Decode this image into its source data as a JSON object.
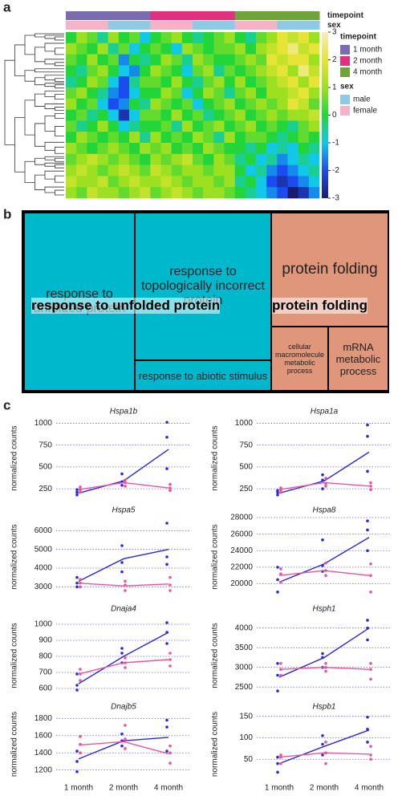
{
  "panels": [
    "a",
    "b",
    "c"
  ],
  "chart_data": [
    {
      "type": "heatmap",
      "annotations": [
        {
          "name": "timepoint",
          "levels": [
            {
              "label": "1 month",
              "color": "#7b6bb0"
            },
            {
              "label": "2 month",
              "color": "#e0307e"
            },
            {
              "label": "4 month",
              "color": "#6ea43a"
            }
          ]
        },
        {
          "name": "sex",
          "levels": [
            {
              "label": "male",
              "color": "#8ecae6"
            },
            {
              "label": "female",
              "color": "#f4b3c6"
            }
          ]
        }
      ],
      "columns": [
        [
          0,
          1
        ],
        [
          0,
          1
        ],
        [
          0,
          1
        ],
        [
          0,
          1
        ],
        [
          0,
          0
        ],
        [
          0,
          0
        ],
        [
          0,
          0
        ],
        [
          0,
          0
        ],
        [
          1,
          1
        ],
        [
          1,
          1
        ],
        [
          1,
          1
        ],
        [
          1,
          1
        ],
        [
          1,
          0
        ],
        [
          1,
          0
        ],
        [
          1,
          0
        ],
        [
          1,
          0
        ],
        [
          2,
          1
        ],
        [
          2,
          1
        ],
        [
          2,
          1
        ],
        [
          2,
          1
        ],
        [
          2,
          0
        ],
        [
          2,
          0
        ],
        [
          2,
          0
        ],
        [
          2,
          0
        ]
      ],
      "colorscale": [
        "#1c1c6e",
        "#1a4cf0",
        "#12c8e8",
        "#22d63a",
        "#9de022",
        "#e6e436",
        "#f7eec0"
      ],
      "clim": [
        -3,
        3
      ],
      "cticks": [
        -3,
        -2,
        -1,
        0,
        1,
        2,
        3
      ],
      "values": [
        [
          0,
          1,
          0.5,
          -0.5,
          1,
          0,
          0.5,
          -1,
          0,
          0.5,
          1,
          0,
          -0.5,
          0,
          0.5,
          1,
          0,
          -0.5,
          0.5,
          1,
          2,
          1.5,
          2,
          1
        ],
        [
          1,
          0.5,
          0,
          1,
          -0.5,
          0.5,
          -1,
          0,
          0.5,
          0,
          -1,
          1,
          0.5,
          0,
          0.5,
          0.5,
          1,
          0,
          1,
          1.5,
          2,
          2.5,
          1.5,
          2
        ],
        [
          0.5,
          0,
          1,
          0,
          0.5,
          -1.5,
          0,
          -0.5,
          0,
          1,
          0.5,
          -0.5,
          1,
          0.5,
          0,
          0,
          0.5,
          1,
          0.5,
          2,
          1.5,
          2,
          2,
          1
        ],
        [
          0,
          -0.5,
          0.5,
          1,
          0,
          -1,
          -1.5,
          0,
          1,
          0.5,
          0,
          -1,
          0.5,
          1,
          -0.5,
          0.5,
          0,
          0.5,
          1,
          1.5,
          2,
          1,
          2.5,
          1.5
        ],
        [
          -0.5,
          0,
          1,
          0.5,
          -1,
          -2,
          -0.5,
          0.5,
          0.5,
          0,
          1,
          0,
          -0.5,
          0.5,
          1,
          0,
          1,
          0,
          0.5,
          1,
          1.5,
          2,
          1,
          2
        ],
        [
          0.5,
          1,
          0,
          -0.5,
          -1.5,
          -2,
          -1,
          0,
          0,
          1,
          0.5,
          -1,
          0,
          1,
          0.5,
          -0.5,
          0.5,
          1,
          0,
          1,
          1,
          1.5,
          2,
          1
        ],
        [
          1,
          0,
          0.5,
          -1,
          -2,
          -1.5,
          0,
          -0.5,
          1,
          0.5,
          0,
          0.5,
          -1,
          0,
          0.5,
          1,
          0,
          0.5,
          1,
          0.5,
          1,
          2,
          1.5,
          0.5
        ],
        [
          0,
          0.5,
          -0.5,
          0,
          -1,
          -2.5,
          -1,
          0.5,
          0.5,
          0,
          1,
          0,
          0.5,
          -0.5,
          0,
          0.5,
          1,
          0,
          0.5,
          1,
          0.5,
          1,
          1,
          1.5
        ],
        [
          0.5,
          -0.5,
          0,
          1,
          0,
          -1,
          -0.5,
          0,
          0,
          0.5,
          -0.5,
          1,
          0,
          0.5,
          1,
          0,
          0.5,
          1,
          0,
          0.5,
          0,
          -0.5,
          0.5,
          1
        ],
        [
          0,
          1,
          0.5,
          0,
          0.5,
          0,
          1,
          -0.5,
          1,
          0,
          0.5,
          0,
          1,
          0.5,
          -0.5,
          1,
          0,
          0.5,
          0.5,
          0,
          -0.5,
          0,
          0.5,
          0
        ],
        [
          1,
          0.5,
          0,
          0.5,
          1,
          0.5,
          0,
          1,
          0.5,
          1,
          0,
          0.5,
          0,
          1,
          0.5,
          0,
          0,
          -0.5,
          0,
          -1,
          -0.5,
          -1,
          0,
          -0.5
        ],
        [
          0.5,
          1,
          1.5,
          1,
          0.5,
          1,
          0.5,
          0,
          1,
          0.5,
          1,
          1.5,
          0.5,
          0,
          1,
          0.5,
          -0.5,
          0,
          -1,
          -0.5,
          -1.5,
          -1,
          -0.5,
          -1
        ],
        [
          1,
          1.5,
          1,
          0.5,
          1,
          1.5,
          1,
          0.5,
          1.5,
          1,
          0.5,
          1,
          1,
          0.5,
          1,
          1,
          0,
          -1,
          -0.5,
          -1.5,
          -2,
          -1.5,
          -1,
          -0.5
        ],
        [
          1.5,
          1,
          1,
          1.5,
          0.5,
          1,
          1.5,
          1,
          1,
          1.5,
          1,
          0.5,
          1,
          1,
          0.5,
          1,
          -0.5,
          0,
          -1,
          -2,
          -2.5,
          -2,
          -1.5,
          -1
        ],
        [
          1,
          0.5,
          1.5,
          1,
          1,
          0.5,
          1,
          1.5,
          0.5,
          1,
          1.5,
          1,
          0.5,
          1,
          1,
          0.5,
          0,
          -0.5,
          -1,
          -1.5,
          -2,
          -3,
          -2.5,
          -1.5
        ]
      ]
    },
    {
      "type": "treemap",
      "groups": [
        {
          "label": "response to unfolded protein",
          "color": "#00b8cc",
          "children": [
            "response to unfolded protein",
            "response to topologically incorrect protein",
            "response to abiotic stimulus"
          ]
        },
        {
          "label": "protein folding",
          "color": "#e0967a",
          "children": [
            "protein folding",
            "cellular macromolecule metabolic process",
            "mRNA metabolic process"
          ]
        }
      ]
    },
    {
      "type": "line",
      "title": "Hspa1b",
      "ylabel": "normalized counts",
      "ylim": [
        150,
        1050
      ],
      "yticks": [
        250,
        500,
        750,
        1000
      ],
      "grid": true,
      "series": [
        {
          "color": "#2b2bd1",
          "values": [
            200,
            340,
            700
          ],
          "points": [
            [
              180,
              210,
              240
            ],
            [
              290,
              330,
              420
            ],
            [
              480,
              840,
              1010
            ]
          ]
        },
        {
          "color": "#e8559b",
          "values": [
            240,
            320,
            260
          ],
          "points": [
            [
              210,
              240,
              270
            ],
            [
              280,
              320,
              350
            ],
            [
              230,
              260,
              300
            ]
          ]
        }
      ]
    },
    {
      "type": "line",
      "title": "Hspa1a",
      "ylabel": "normalized counts",
      "ylim": [
        150,
        1050
      ],
      "yticks": [
        250,
        500,
        750,
        1000
      ],
      "grid": true,
      "series": [
        {
          "color": "#2b2bd1",
          "values": [
            200,
            340,
            670
          ],
          "points": [
            [
              180,
              210,
              230
            ],
            [
              250,
              350,
              410
            ],
            [
              450,
              850,
              980
            ]
          ]
        },
        {
          "color": "#e8559b",
          "values": [
            240,
            320,
            280
          ],
          "points": [
            [
              210,
              240,
              260
            ],
            [
              280,
              310,
              370
            ],
            [
              240,
              280,
              320
            ]
          ]
        }
      ]
    },
    {
      "type": "line",
      "title": "Hspa5",
      "ylabel": "normalized counts",
      "ylim": [
        2500,
        6700
      ],
      "yticks": [
        3000,
        4000,
        5000,
        6000
      ],
      "grid": true,
      "series": [
        {
          "color": "#2b2bd1",
          "values": [
            3300,
            4500,
            5000
          ],
          "points": [
            [
              3000,
              3200,
              3500
            ],
            [
              3800,
              4300,
              5200
            ],
            [
              4200,
              4600,
              6400
            ]
          ]
        },
        {
          "color": "#e8559b",
          "values": [
            3200,
            3050,
            3150
          ],
          "points": [
            [
              3000,
              3200,
              3400
            ],
            [
              2800,
              3100,
              3300
            ],
            [
              2800,
              3100,
              3500
            ]
          ]
        }
      ]
    },
    {
      "type": "line",
      "title": "Hspa8",
      "ylabel": "normalized counts",
      "ylim": [
        18500,
        28000
      ],
      "yticks": [
        20000,
        22000,
        24000,
        26000,
        28000
      ],
      "grid": true,
      "series": [
        {
          "color": "#2b2bd1",
          "values": [
            20200,
            22400,
            25600
          ],
          "points": [
            [
              19000,
              20500,
              22000
            ],
            [
              21500,
              22200,
              25300
            ],
            [
              24000,
              26500,
              27600
            ]
          ]
        },
        {
          "color": "#e8559b",
          "values": [
            21000,
            21600,
            21000
          ],
          "points": [
            [
              20200,
              21200,
              21800
            ],
            [
              21000,
              21600,
              22500
            ],
            [
              19000,
              21000,
              22400
            ]
          ]
        }
      ]
    },
    {
      "type": "line",
      "title": "Dnaja4",
      "ylabel": "normalized counts",
      "ylim": [
        560,
        1050
      ],
      "yticks": [
        600,
        700,
        800,
        900,
        1000
      ],
      "grid": true,
      "series": [
        {
          "color": "#2b2bd1",
          "values": [
            630,
            800,
            950
          ],
          "points": [
            [
              590,
              620,
              690
            ],
            [
              760,
              820,
              850
            ],
            [
              880,
              950,
              1010
            ]
          ]
        },
        {
          "color": "#e8559b",
          "values": [
            690,
            760,
            780
          ],
          "points": [
            [
              650,
              690,
              720
            ],
            [
              730,
              760,
              790
            ],
            [
              740,
              780,
              820
            ]
          ]
        }
      ]
    },
    {
      "type": "line",
      "title": "Hsph1",
      "ylabel": "normalized counts",
      "ylim": [
        2300,
        4300
      ],
      "yticks": [
        2500,
        3000,
        3500,
        4000
      ],
      "grid": true,
      "series": [
        {
          "color": "#2b2bd1",
          "values": [
            2750,
            3250,
            4000
          ],
          "points": [
            [
              2400,
              2800,
              3100
            ],
            [
              3000,
              3250,
              3350
            ],
            [
              3700,
              4000,
              4200
            ]
          ]
        },
        {
          "color": "#e8559b",
          "values": [
            2950,
            3000,
            2950
          ],
          "points": [
            [
              2800,
              2950,
              3100
            ],
            [
              2900,
              3000,
              3100
            ],
            [
              2700,
              2950,
              3100
            ]
          ]
        }
      ]
    },
    {
      "type": "line",
      "title": "Dnajb5",
      "ylabel": "normalized counts",
      "ylim": [
        1150,
        1850
      ],
      "yticks": [
        1200,
        1400,
        1600,
        1800
      ],
      "grid": true,
      "categories": [
        "1 month",
        "2 month",
        "4 month"
      ],
      "series": [
        {
          "color": "#2b2bd1",
          "values": [
            1330,
            1540,
            1580
          ],
          "points": [
            [
              1180,
              1300,
              1420
            ],
            [
              1480,
              1540,
              1620
            ],
            [
              1420,
              1700,
              1780
            ]
          ]
        },
        {
          "color": "#e8559b",
          "values": [
            1490,
            1530,
            1390
          ],
          "points": [
            [
              1400,
              1500,
              1590
            ],
            [
              1450,
              1560,
              1720
            ],
            [
              1280,
              1400,
              1480
            ]
          ]
        }
      ]
    },
    {
      "type": "line",
      "title": "Hspb1",
      "ylabel": "normalized counts",
      "ylim": [
        15,
        155
      ],
      "yticks": [
        50,
        100,
        150
      ],
      "grid": true,
      "categories": [
        "1 month",
        "2 month",
        "4 month"
      ],
      "series": [
        {
          "color": "#2b2bd1",
          "values": [
            40,
            80,
            118
          ],
          "points": [
            [
              20,
              40,
              55
            ],
            [
              60,
              85,
              105
            ],
            [
              90,
              120,
              148
            ]
          ]
        },
        {
          "color": "#e8559b",
          "values": [
            55,
            65,
            62
          ],
          "points": [
            [
              40,
              55,
              60
            ],
            [
              40,
              65,
              90
            ],
            [
              50,
              60,
              80
            ]
          ]
        }
      ]
    }
  ]
}
